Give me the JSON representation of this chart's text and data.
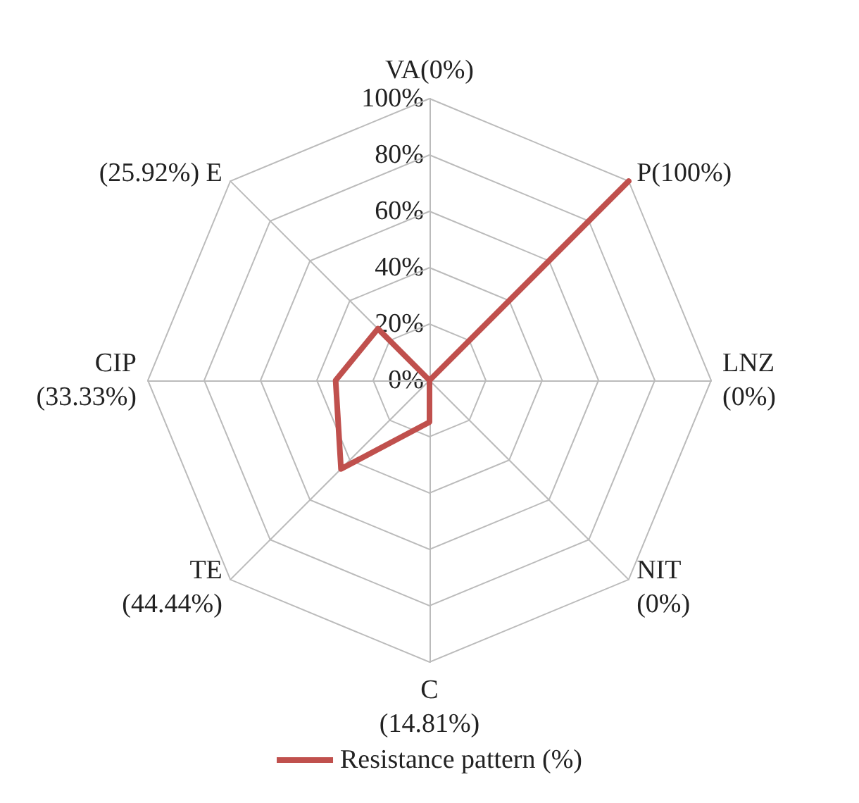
{
  "chart_data": {
    "type": "radar",
    "categories": [
      "VA(0%)",
      "P(100%)",
      "LNZ\n(0%)",
      "NIT\n(0%)",
      "C\n(14.81%)",
      "TE\n(44.44%)",
      "CIP\n(33.33%)",
      "(25.92%) E"
    ],
    "series": [
      {
        "name": "Resistance pattern (%)",
        "color": "#c0504d",
        "values": [
          0,
          100,
          0,
          0,
          14.81,
          44.44,
          33.33,
          25.92
        ]
      }
    ],
    "ylim": [
      0,
      100
    ],
    "yticks": [
      {
        "value": 0,
        "label": "0%"
      },
      {
        "value": 20,
        "label": "20%"
      },
      {
        "value": 40,
        "label": "40%"
      },
      {
        "value": 60,
        "label": "60%"
      },
      {
        "value": 80,
        "label": "80%"
      },
      {
        "value": 100,
        "label": "100%"
      }
    ],
    "legend": "bottom",
    "marker": "none",
    "line_style": "solid"
  }
}
